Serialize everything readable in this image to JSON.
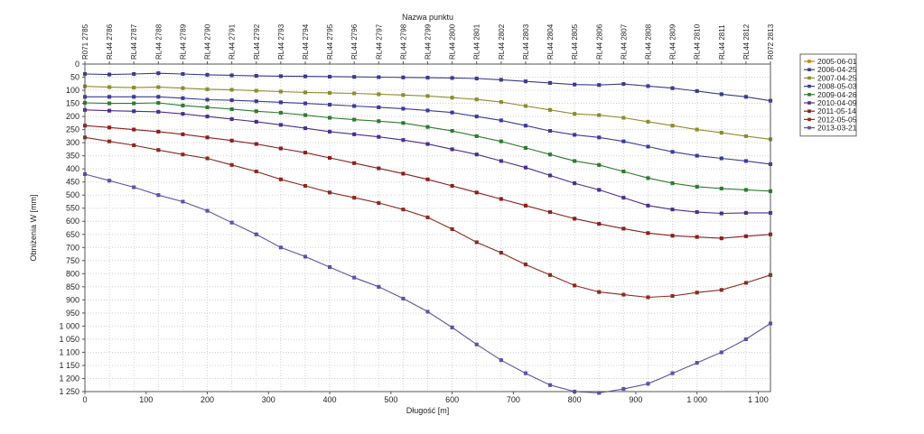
{
  "chart_data": {
    "type": "line",
    "title": "",
    "top_axis_title": "Nazwa punktu",
    "xlabel": "Długość [m]",
    "ylabel": "Obniżenia W [mm]",
    "xlim": [
      0,
      1120
    ],
    "ylim": [
      0,
      1250
    ],
    "y_inverted": true,
    "grid": true,
    "legend_position": "right",
    "x_ticks": [
      0,
      100,
      200,
      300,
      400,
      500,
      600,
      700,
      800,
      900,
      1000,
      1100
    ],
    "x_tick_labels": [
      "0",
      "100",
      "200",
      "300",
      "400",
      "500",
      "600",
      "700",
      "800",
      "900",
      "1 000",
      "1 100"
    ],
    "y_ticks": [
      0,
      50,
      100,
      150,
      200,
      250,
      300,
      350,
      400,
      450,
      500,
      550,
      600,
      650,
      700,
      750,
      800,
      850,
      900,
      950,
      1000,
      1050,
      1100,
      1150,
      1200,
      1250
    ],
    "y_tick_labels": [
      "0",
      "50",
      "100",
      "150",
      "200",
      "250",
      "300",
      "350",
      "400",
      "450",
      "500",
      "550",
      "600",
      "650",
      "700",
      "750",
      "800",
      "850",
      "900",
      "950",
      "1 000",
      "1 050",
      "1 100",
      "1 150",
      "1 200",
      "1 250"
    ],
    "x": [
      0,
      40,
      80,
      120,
      160,
      200,
      240,
      280,
      320,
      360,
      400,
      440,
      480,
      520,
      560,
      600,
      640,
      680,
      720,
      760,
      800,
      840,
      880,
      920,
      960,
      1000,
      1040,
      1080,
      1120
    ],
    "point_names": [
      "R071 2785",
      "RL44 2786",
      "RL44 2787",
      "RL44 2788",
      "RL44 2789",
      "RL44 2790",
      "RL44 2791",
      "RL44 2792",
      "RL44 2793",
      "RL44 2794",
      "RL44 2795",
      "RL44 2796",
      "RL44 2797",
      "RL44 2798",
      "RL44 2799",
      "RL44 2800",
      "RL44 2801",
      "RL44 2802",
      "RL44 2803",
      "RL44 2804",
      "RL44 2805",
      "RL44 2806",
      "RL44 2807",
      "RL44 2808",
      "RL44 2809",
      "RL44 2810",
      "RL44 2811",
      "RL44 2812",
      "R072 2813"
    ],
    "series": [
      {
        "name": "2005-06-01",
        "color": "#c8820e",
        "values": [
          null,
          null,
          null,
          null,
          null,
          null,
          null,
          null,
          null,
          null,
          null,
          null,
          null,
          null,
          null,
          null,
          null,
          null,
          null,
          null,
          null,
          null,
          null,
          null,
          null,
          null,
          null,
          null,
          null
        ]
      },
      {
        "name": "2006-04-25",
        "color": "#3a3a8c",
        "values": [
          38,
          40,
          38,
          35,
          38,
          41,
          43,
          45,
          46,
          47,
          48,
          49,
          50,
          51,
          52,
          53,
          55,
          60,
          66,
          72,
          78,
          80,
          76,
          84,
          92,
          103,
          115,
          125,
          140
        ]
      },
      {
        "name": "2007-04-25",
        "color": "#8c8c2e",
        "values": [
          85,
          88,
          90,
          88,
          92,
          96,
          98,
          102,
          105,
          108,
          110,
          112,
          115,
          118,
          122,
          128,
          135,
          145,
          160,
          175,
          190,
          195,
          205,
          220,
          235,
          250,
          262,
          275,
          287
        ]
      },
      {
        "name": "2008-05-03",
        "color": "#3a3a9c",
        "values": [
          125,
          125,
          125,
          125,
          130,
          136,
          138,
          142,
          146,
          150,
          155,
          160,
          165,
          170,
          177,
          185,
          200,
          215,
          235,
          255,
          270,
          280,
          295,
          315,
          335,
          350,
          360,
          370,
          382
        ]
      },
      {
        "name": "2009-04-26",
        "color": "#2e7a2e",
        "values": [
          148,
          150,
          150,
          148,
          158,
          165,
          172,
          180,
          186,
          195,
          205,
          212,
          218,
          225,
          240,
          255,
          275,
          295,
          320,
          345,
          370,
          385,
          410,
          435,
          455,
          468,
          475,
          480,
          485
        ]
      },
      {
        "name": "2010-04-09",
        "color": "#4a2e8c",
        "values": [
          175,
          178,
          180,
          182,
          190,
          200,
          210,
          220,
          232,
          245,
          258,
          268,
          278,
          290,
          305,
          325,
          345,
          370,
          395,
          425,
          455,
          480,
          510,
          540,
          555,
          565,
          570,
          568,
          568
        ]
      },
      {
        "name": "2011-05-14",
        "color": "#8c1e1e",
        "values": [
          235,
          242,
          250,
          258,
          268,
          280,
          292,
          305,
          322,
          338,
          358,
          378,
          398,
          418,
          440,
          465,
          490,
          515,
          540,
          565,
          590,
          610,
          628,
          645,
          655,
          660,
          665,
          657,
          650
        ]
      },
      {
        "name": "2012-05-05",
        "color": "#8c2a1e",
        "values": [
          280,
          295,
          310,
          328,
          345,
          360,
          385,
          410,
          440,
          465,
          490,
          510,
          530,
          555,
          585,
          630,
          680,
          720,
          765,
          805,
          845,
          870,
          880,
          890,
          885,
          872,
          862,
          835,
          805
        ]
      },
      {
        "name": "2013-03-21",
        "color": "#5e50a8",
        "values": [
          420,
          445,
          470,
          500,
          525,
          560,
          605,
          650,
          700,
          735,
          775,
          815,
          850,
          895,
          945,
          1005,
          1070,
          1130,
          1180,
          1225,
          1250,
          1255,
          1240,
          1220,
          1180,
          1140,
          1100,
          1050,
          990
        ]
      }
    ]
  }
}
